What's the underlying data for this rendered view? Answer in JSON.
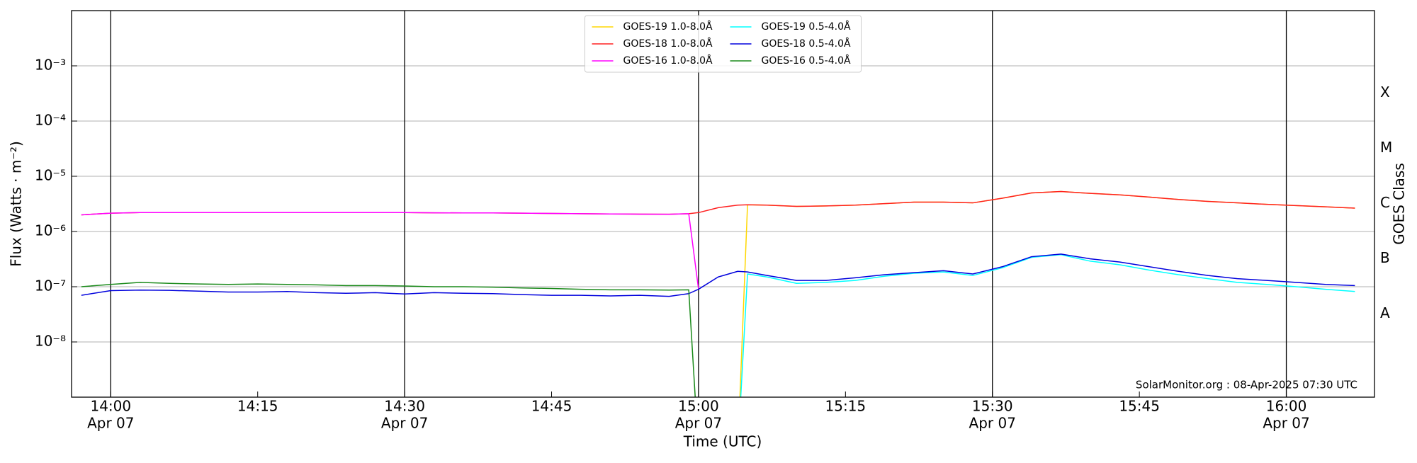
{
  "chart_data": {
    "type": "line",
    "log_y": true,
    "grid": true,
    "legend": "upper center",
    "legend_ncol": 2,
    "xlabel": "Time (UTC)",
    "ylabel": "Flux (Watts · m⁻²)",
    "y2label": "GOES Class",
    "annotation": "SolarMonitor.org : 08-Apr-2025 07:30 UTC",
    "xlim": [
      "13:56",
      "16:09"
    ],
    "xticks": [
      "14:00",
      "14:15",
      "14:30",
      "14:45",
      "15:00",
      "15:15",
      "15:30",
      "15:45",
      "16:00"
    ],
    "xtick_sublabels": [
      "Apr 07",
      null,
      "Apr 07",
      null,
      "Apr 07",
      null,
      "Apr 07",
      null,
      "Apr 07"
    ],
    "vlines": [
      "14:00",
      "14:30",
      "15:00",
      "15:30",
      "16:00"
    ],
    "ylim": [
      1e-09,
      0.01
    ],
    "yticks": [
      {
        "value": 1e-08,
        "label": "10⁻⁸"
      },
      {
        "value": 1e-07,
        "label": "10⁻⁷"
      },
      {
        "value": 1e-06,
        "label": "10⁻⁶"
      },
      {
        "value": 1e-05,
        "label": "10⁻⁵"
      },
      {
        "value": 0.0001,
        "label": "10⁻⁴"
      },
      {
        "value": 0.001,
        "label": "10⁻³"
      }
    ],
    "y2lim": [
      1e-09,
      0.01
    ],
    "y2ticks": [
      {
        "value": 3.2e-08,
        "label": "A"
      },
      {
        "value": 3.2e-07,
        "label": "B"
      },
      {
        "value": 3.2e-06,
        "label": "C"
      },
      {
        "value": 3.2e-05,
        "label": "M"
      },
      {
        "value": 0.00032,
        "label": "X"
      }
    ],
    "x": [
      "13:57",
      "14:00",
      "14:03",
      "14:06",
      "14:09",
      "14:12",
      "14:15",
      "14:18",
      "14:21",
      "14:24",
      "14:27",
      "14:30",
      "14:33",
      "14:36",
      "14:39",
      "14:42",
      "14:45",
      "14:48",
      "14:51",
      "14:54",
      "14:57",
      "14:59",
      "15:00",
      "15:02",
      "15:04",
      "15:05",
      "15:07",
      "15:10",
      "15:13",
      "15:16",
      "15:19",
      "15:22",
      "15:25",
      "15:28",
      "15:31",
      "15:34",
      "15:37",
      "15:40",
      "15:43",
      "15:46",
      "15:49",
      "15:52",
      "15:55",
      "15:58",
      "16:01",
      "16:04",
      "16:07"
    ],
    "series": [
      {
        "name": "GOES-19 1.0-8.0Å",
        "color": "#ffd700",
        "values": [
          null,
          null,
          null,
          null,
          null,
          null,
          null,
          null,
          null,
          null,
          null,
          null,
          null,
          null,
          null,
          null,
          null,
          null,
          null,
          null,
          null,
          null,
          null,
          null,
          1e-10,
          3.05e-06,
          3e-06,
          2.85e-06,
          2.9e-06,
          3e-06,
          3.2e-06,
          3.4e-06,
          3.4e-06,
          3.3e-06,
          4e-06,
          5e-06,
          5.3e-06,
          4.9e-06,
          4.6e-06,
          4.2e-06,
          3.8e-06,
          3.5e-06,
          3.3e-06,
          3.1e-06,
          2.95e-06,
          2.8e-06,
          2.65e-06
        ]
      },
      {
        "name": "GOES-18 1.0-8.0Å",
        "color": "#ff2020",
        "values": [
          2e-06,
          2.15e-06,
          2.2e-06,
          2.2e-06,
          2.2e-06,
          2.2e-06,
          2.2e-06,
          2.2e-06,
          2.2e-06,
          2.2e-06,
          2.2e-06,
          2.2e-06,
          2.18e-06,
          2.17e-06,
          2.17e-06,
          2.15e-06,
          2.12e-06,
          2.1e-06,
          2.08e-06,
          2.06e-06,
          2.05e-06,
          2.1e-06,
          2.2e-06,
          2.7e-06,
          3e-06,
          3.05e-06,
          3e-06,
          2.85e-06,
          2.9e-06,
          3e-06,
          3.2e-06,
          3.4e-06,
          3.4e-06,
          3.3e-06,
          4e-06,
          5e-06,
          5.3e-06,
          4.9e-06,
          4.6e-06,
          4.2e-06,
          3.8e-06,
          3.5e-06,
          3.3e-06,
          3.1e-06,
          2.95e-06,
          2.8e-06,
          2.65e-06
        ]
      },
      {
        "name": "GOES-16 1.0-8.0Å",
        "color": "#ff00ff",
        "values": [
          2e-06,
          2.15e-06,
          2.2e-06,
          2.2e-06,
          2.2e-06,
          2.2e-06,
          2.2e-06,
          2.2e-06,
          2.2e-06,
          2.2e-06,
          2.2e-06,
          2.2e-06,
          2.18e-06,
          2.17e-06,
          2.17e-06,
          2.15e-06,
          2.12e-06,
          2.1e-06,
          2.08e-06,
          2.06e-06,
          2.05e-06,
          2.1e-06,
          9e-08,
          null,
          null,
          null,
          null,
          null,
          null,
          null,
          null,
          null,
          null,
          null,
          null,
          null,
          null,
          null,
          null,
          null,
          null,
          null,
          null,
          null,
          null,
          null,
          null
        ]
      },
      {
        "name": "GOES-19 0.5-4.0Å",
        "color": "#00ffff",
        "values": [
          null,
          null,
          null,
          null,
          null,
          null,
          null,
          null,
          null,
          null,
          null,
          null,
          null,
          null,
          null,
          null,
          null,
          null,
          null,
          null,
          null,
          null,
          null,
          null,
          1e-10,
          1.7e-07,
          1.5e-07,
          1.15e-07,
          1.2e-07,
          1.3e-07,
          1.55e-07,
          1.75e-07,
          1.85e-07,
          1.6e-07,
          2.2e-07,
          3.4e-07,
          3.8e-07,
          2.9e-07,
          2.5e-07,
          2e-07,
          1.65e-07,
          1.4e-07,
          1.2e-07,
          1.1e-07,
          1e-07,
          9e-08,
          8.2e-08
        ]
      },
      {
        "name": "GOES-18 0.5-4.0Å",
        "color": "#0000dd",
        "values": [
          7e-08,
          8.5e-08,
          8.7e-08,
          8.6e-08,
          8.3e-08,
          8e-08,
          8e-08,
          8.2e-08,
          7.8e-08,
          7.6e-08,
          7.8e-08,
          7.4e-08,
          7.8e-08,
          7.6e-08,
          7.5e-08,
          7.2e-08,
          7e-08,
          7e-08,
          6.8e-08,
          7e-08,
          6.7e-08,
          7.5e-08,
          9e-08,
          1.5e-07,
          1.9e-07,
          1.85e-07,
          1.6e-07,
          1.3e-07,
          1.3e-07,
          1.45e-07,
          1.65e-07,
          1.8e-07,
          1.95e-07,
          1.7e-07,
          2.3e-07,
          3.5e-07,
          3.9e-07,
          3.2e-07,
          2.8e-07,
          2.3e-07,
          1.9e-07,
          1.6e-07,
          1.4e-07,
          1.3e-07,
          1.2e-07,
          1.1e-07,
          1.05e-07
        ]
      },
      {
        "name": "GOES-16 0.5-4.0Å",
        "color": "#1a8a1a",
        "values": [
          1e-07,
          1.1e-07,
          1.2e-07,
          1.15e-07,
          1.12e-07,
          1.1e-07,
          1.12e-07,
          1.1e-07,
          1.08e-07,
          1.05e-07,
          1.05e-07,
          1.03e-07,
          1e-07,
          1e-07,
          9.8e-08,
          9.5e-08,
          9.3e-08,
          9e-08,
          8.8e-08,
          8.8e-08,
          8.7e-08,
          8.8e-08,
          1e-10,
          null,
          null,
          null,
          null,
          null,
          null,
          null,
          null,
          null,
          null,
          null,
          null,
          null,
          null,
          null,
          null,
          null,
          null,
          null,
          null,
          null,
          null,
          null,
          null
        ]
      }
    ]
  }
}
